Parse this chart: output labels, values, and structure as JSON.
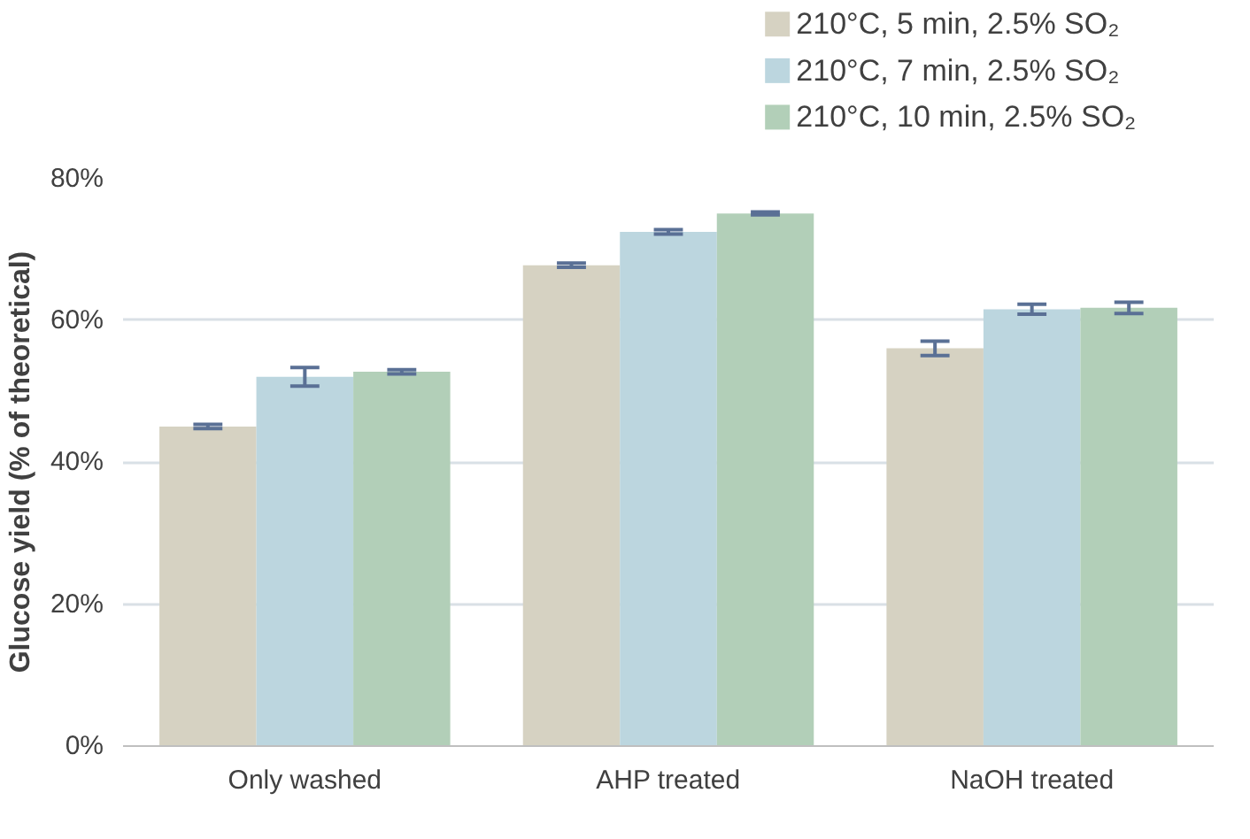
{
  "chart_data": {
    "type": "bar",
    "ylabel": "Glucose yield (% of theoretical)",
    "categories": [
      "Only washed",
      "AHP treated",
      "NaOH treated"
    ],
    "ylim": [
      0,
      80
    ],
    "yticks": [
      {
        "value": 0,
        "label": "0%"
      },
      {
        "value": 20,
        "label": "20%"
      },
      {
        "value": 40,
        "label": "40%"
      },
      {
        "value": 60,
        "label": "60%"
      },
      {
        "value": 80,
        "label": "80%"
      }
    ],
    "grid": "y",
    "legend": "top right",
    "series": [
      {
        "name": "210°C, 5 min, 2.5% SO₂",
        "color": "#d6d2c2",
        "values": [
          45.0,
          67.7,
          56.0
        ],
        "errors": [
          0.3,
          0.3,
          1.0
        ]
      },
      {
        "name": "210°C, 7 min, 2.5% SO₂",
        "color": "#bcd6df",
        "values": [
          52.0,
          72.4,
          61.5
        ],
        "errors": [
          1.3,
          0.3,
          0.7
        ]
      },
      {
        "name": "210°C, 10 min, 2.5% SO₂",
        "color": "#b2cfb8",
        "values": [
          52.7,
          75.0,
          61.7
        ],
        "errors": [
          0.3,
          0.2,
          0.8
        ]
      }
    ]
  }
}
